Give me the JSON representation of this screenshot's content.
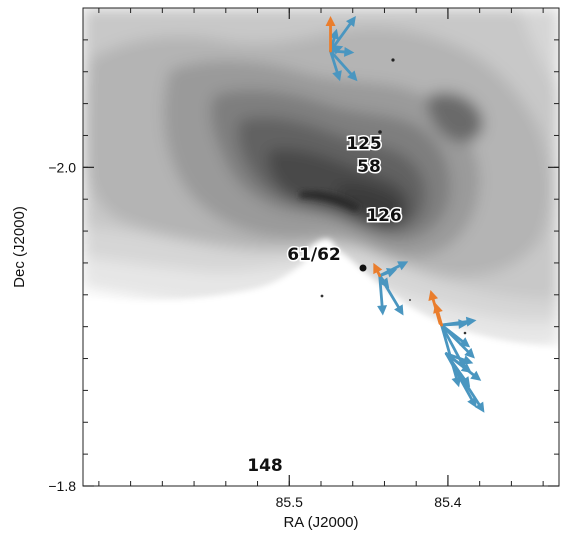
{
  "chart_data": {
    "type": "scatter",
    "title": "",
    "xlabel": "RA (J2000)",
    "ylabel": "Dec (J2000)",
    "xlim": [
      85.63,
      85.33
    ],
    "ylim": [
      -2.1,
      -1.8
    ],
    "x_ticks": [
      85.5,
      85.4
    ],
    "x_tick_labels": [
      "85.5",
      "85.4"
    ],
    "y_ticks": [
      -1.8,
      -2.0
    ],
    "y_tick_labels": [
      "−1.8",
      "−2.0"
    ],
    "background": "greyscale-contour-image",
    "colors": {
      "blue_arrow": "#4a96c0",
      "orange_arrow": "#ea7d2c",
      "frame": "#222222"
    },
    "sources": [
      {
        "label": "125",
        "ra": 85.401,
        "dec": -1.883,
        "blue_vectors": [
          [
            85.377,
            -1.846
          ],
          [
            85.382,
            -1.849
          ],
          [
            85.386,
            -1.862
          ],
          [
            85.379,
            -1.866
          ],
          [
            85.385,
            -1.871
          ],
          [
            85.384,
            -1.877
          ]
        ],
        "orange_vectors": []
      },
      {
        "label": "58",
        "ra": 85.404,
        "dec": -1.901,
        "blue_vectors": [
          [
            85.393,
            -1.862
          ],
          [
            85.389,
            -1.873
          ],
          [
            85.386,
            -1.887
          ],
          [
            85.383,
            -1.88
          ],
          [
            85.387,
            -1.902
          ],
          [
            85.382,
            -1.904
          ]
        ],
        "orange_vectors": [
          [
            85.408,
            -1.915
          ]
        ]
      },
      {
        "label": "126",
        "ra": 85.405,
        "dec": -1.902,
        "blue_vectors": [],
        "orange_vectors": [
          [
            85.411,
            -1.923
          ]
        ]
      },
      {
        "label": "61/62",
        "ra": 85.443,
        "dec": -1.932,
        "blue_vectors": [
          [
            85.441,
            -1.907
          ],
          [
            85.428,
            -1.907
          ],
          [
            85.437,
            -1.924
          ],
          [
            85.432,
            -1.936
          ],
          [
            85.425,
            -1.941
          ]
        ],
        "orange_vectors": [
          [
            85.447,
            -1.94
          ]
        ]
      },
      {
        "label": "148",
        "ra": 85.474,
        "dec": -2.073,
        "blue_vectors": [
          [
            85.468,
            -2.054
          ],
          [
            85.457,
            -2.054
          ],
          [
            85.459,
            -2.072
          ],
          [
            85.466,
            -2.076
          ],
          [
            85.47,
            -2.087
          ],
          [
            85.458,
            -2.095
          ]
        ],
        "orange_vectors": [
          [
            85.474,
            -2.095
          ]
        ]
      }
    ]
  }
}
